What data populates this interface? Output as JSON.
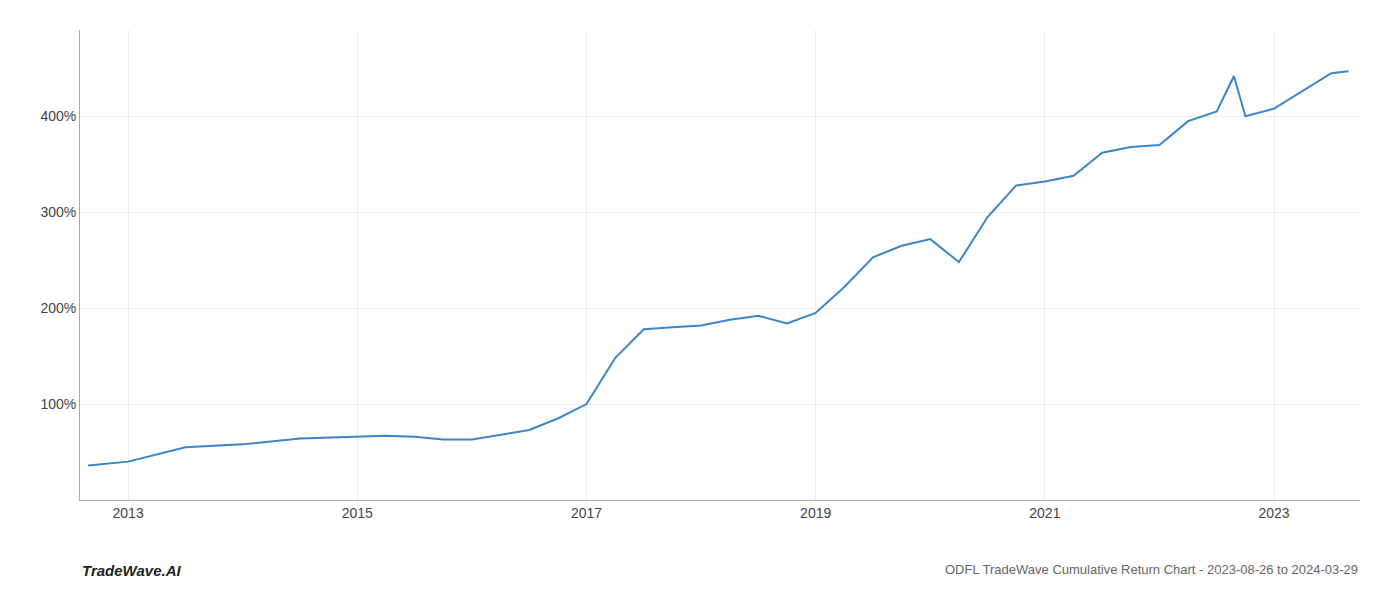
{
  "chart_data": {
    "type": "line",
    "title": "ODFL TradeWave Cumulative Return Chart - 2023-08-26 to 2024-03-29",
    "annotations": [
      {
        "text": "TradeWave.AI"
      }
    ],
    "x": [
      2012.65,
      2013.0,
      2013.5,
      2014.0,
      2014.5,
      2015.0,
      2015.25,
      2015.5,
      2015.75,
      2016.0,
      2016.5,
      2016.75,
      2017.0,
      2017.25,
      2017.5,
      2017.75,
      2018.0,
      2018.25,
      2018.5,
      2018.75,
      2019.0,
      2019.25,
      2019.5,
      2019.75,
      2020.0,
      2020.25,
      2020.5,
      2020.75,
      2021.0,
      2021.25,
      2021.5,
      2021.75,
      2022.0,
      2022.25,
      2022.5,
      2022.65,
      2022.75,
      2023.0,
      2023.5,
      2023.65
    ],
    "values": [
      36,
      40,
      55,
      58,
      64,
      66,
      67,
      66,
      63,
      63,
      73,
      85,
      100,
      148,
      178,
      180,
      182,
      188,
      192,
      184,
      195,
      222,
      253,
      265,
      272,
      248,
      295,
      328,
      332,
      338,
      362,
      368,
      370,
      395,
      405,
      442,
      400,
      408,
      445,
      447
    ],
    "color": "#3a86c8",
    "xlim": [
      2012.58,
      2023.75
    ],
    "xticks": [
      2013,
      2015,
      2017,
      2019,
      2021,
      2023
    ],
    "ylim": [
      0,
      490
    ],
    "yticks": [
      {
        "value": 100,
        "label": "100%"
      },
      {
        "value": 200,
        "label": "200%"
      },
      {
        "value": 300,
        "label": "300%"
      },
      {
        "value": 400,
        "label": "400%"
      }
    ],
    "grid": true
  }
}
